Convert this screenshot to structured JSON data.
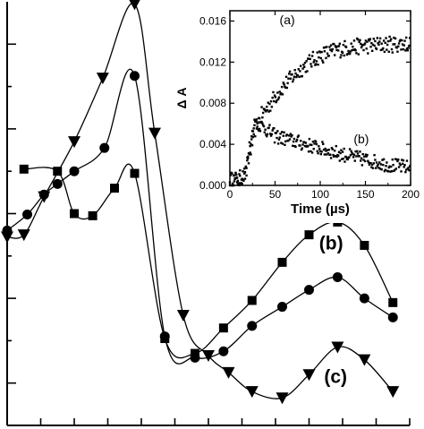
{
  "chart_data": [
    {
      "type": "line",
      "xlabel": "",
      "ylabel": "",
      "ticks_labeled": false,
      "markers": {
        "a": "square",
        "b": "circle",
        "c": "triangle-down"
      },
      "series": [
        {
          "name": "(a)",
          "points": [
            [
              0.5,
              0.605
            ],
            [
              1.5,
              0.6
            ],
            [
              2,
              0.5
            ],
            [
              2.55,
              0.495
            ],
            [
              3.2,
              0.56
            ],
            [
              3.8,
              0.595
            ],
            [
              4.7,
              0.205
            ],
            [
              5.6,
              0.17
            ],
            [
              6.45,
              0.23
            ],
            [
              7.3,
              0.295
            ],
            [
              8.2,
              0.385
            ],
            [
              9,
              0.45
            ],
            [
              9.85,
              0.48
            ],
            [
              10.65,
              0.425
            ],
            [
              11.5,
              0.29
            ]
          ]
        },
        {
          "name": "(b)",
          "points": [
            [
              0,
              0.46
            ],
            [
              0.6,
              0.498
            ],
            [
              1.1,
              0.545
            ],
            [
              1.5,
              0.57
            ],
            [
              2,
              0.6
            ],
            [
              2.9,
              0.655
            ],
            [
              3.8,
              0.825
            ],
            [
              4.7,
              0.21
            ],
            [
              5.6,
              0.16
            ],
            [
              6.45,
              0.175
            ],
            [
              7.3,
              0.235
            ],
            [
              8.2,
              0.28
            ],
            [
              9,
              0.32
            ],
            [
              9.85,
              0.35
            ],
            [
              10.65,
              0.3
            ],
            [
              11.5,
              0.255
            ]
          ]
        },
        {
          "name": "(c)",
          "points": [
            [
              0,
              0.445
            ],
            [
              0.5,
              0.45
            ],
            [
              1.1,
              0.54
            ],
            [
              2,
              0.67
            ],
            [
              2.85,
              0.82
            ],
            [
              3.8,
              0.995
            ],
            [
              4.4,
              0.69
            ],
            [
              5.25,
              0.26
            ],
            [
              6,
              0.165
            ],
            [
              6.6,
              0.125
            ],
            [
              7.3,
              0.08
            ],
            [
              8.2,
              0.065
            ],
            [
              9,
              0.12
            ],
            [
              9.85,
              0.185
            ],
            [
              10.65,
              0.155
            ],
            [
              11.5,
              0.08
            ]
          ]
        }
      ],
      "xlim": [
        0,
        12
      ],
      "ylim": [
        0,
        1
      ],
      "labels": [
        {
          "text": "(a)",
          "x": 7.75,
          "y": 0.52
        },
        {
          "text": "(b)",
          "x": 9.3,
          "y": 0.415
        },
        {
          "text": "(c)",
          "x": 9.45,
          "y": 0.1
        }
      ]
    },
    {
      "type": "scatter",
      "xlabel": "Time (µs)",
      "ylabel": "Δ A",
      "xlim": [
        0,
        200
      ],
      "ylim": [
        0,
        0.017
      ],
      "xticks": [
        0,
        50,
        100,
        150,
        200
      ],
      "xtick_labels": [
        "0",
        "50",
        "100",
        "150",
        "200"
      ],
      "yticks": [
        0,
        0.004,
        0.008,
        0.012,
        0.016
      ],
      "ytick_labels": [
        "0.000",
        "0.004",
        "0.008",
        "0.012",
        "0.016"
      ],
      "series": [
        {
          "name": "(a)",
          "points": [
            [
              0,
              0.0005
            ],
            [
              10,
              0.0006
            ],
            [
              18,
              0.0012
            ],
            [
              22,
              0.003
            ],
            [
              28,
              0.0055
            ],
            [
              35,
              0.0068
            ],
            [
              45,
              0.008
            ],
            [
              55,
              0.0092
            ],
            [
              65,
              0.0102
            ],
            [
              75,
              0.011
            ],
            [
              85,
              0.0118
            ],
            [
              95,
              0.0124
            ],
            [
              105,
              0.0128
            ],
            [
              115,
              0.0131
            ],
            [
              130,
              0.0134
            ],
            [
              150,
              0.0136
            ],
            [
              170,
              0.0137
            ],
            [
              200,
              0.0138
            ]
          ],
          "noise": 0.0008
        },
        {
          "name": "(b)",
          "points": [
            [
              0,
              0.0005
            ],
            [
              10,
              0.0006
            ],
            [
              18,
              0.0015
            ],
            [
              22,
              0.004
            ],
            [
              28,
              0.0062
            ],
            [
              35,
              0.0058
            ],
            [
              50,
              0.0048
            ],
            [
              75,
              0.0042
            ],
            [
              100,
              0.0036
            ],
            [
              125,
              0.003
            ],
            [
              150,
              0.0025
            ],
            [
              175,
              0.002
            ],
            [
              200,
              0.0017
            ]
          ],
          "noise": 0.0007
        }
      ],
      "labels": [
        {
          "text": "(a)",
          "x": 55,
          "y": 0.0157
        },
        {
          "text": "(b)",
          "x": 137,
          "y": 0.0041
        }
      ]
    }
  ]
}
